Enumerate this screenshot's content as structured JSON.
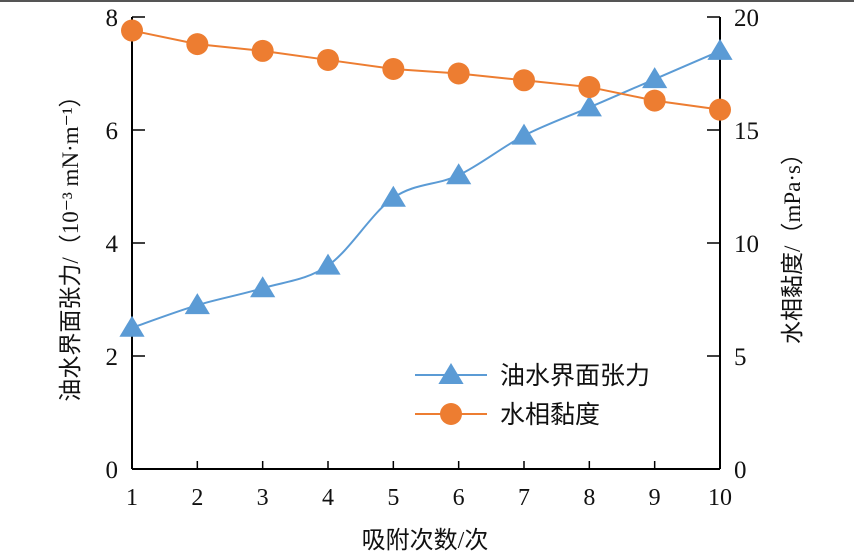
{
  "chart_data": {
    "type": "line",
    "x": [
      1,
      2,
      3,
      4,
      5,
      6,
      7,
      8,
      9,
      10
    ],
    "xlabel": "吸附次数/次",
    "xlim": [
      1,
      10
    ],
    "xticks": [
      "1",
      "2",
      "3",
      "4",
      "5",
      "6",
      "7",
      "8",
      "9",
      "10"
    ],
    "ylabel_left": "油水界面张力/（10⁻³ mN·m⁻¹）",
    "ylim_left": [
      0,
      8
    ],
    "yticks_left": [
      "0",
      "2",
      "4",
      "6",
      "8"
    ],
    "ylabel_right": "水相黏度/（mPa·s）",
    "ylim_right": [
      0,
      20
    ],
    "yticks_right": [
      "0",
      "5",
      "10",
      "15",
      "20"
    ],
    "grid": false,
    "legend_position": "bottom-right",
    "series": [
      {
        "name": "油水界面张力",
        "axis": "left",
        "marker": "triangle",
        "color": "#5b9bd5",
        "smooth": true,
        "values": [
          2.5,
          2.9,
          3.2,
          3.6,
          4.8,
          5.2,
          5.9,
          6.4,
          6.9,
          7.4
        ]
      },
      {
        "name": "水相黏度",
        "axis": "right",
        "marker": "circle",
        "color": "#ed7d31",
        "smooth": false,
        "values": [
          19.4,
          18.8,
          18.5,
          18.1,
          17.7,
          17.5,
          17.2,
          16.9,
          16.3,
          15.9
        ]
      }
    ]
  }
}
